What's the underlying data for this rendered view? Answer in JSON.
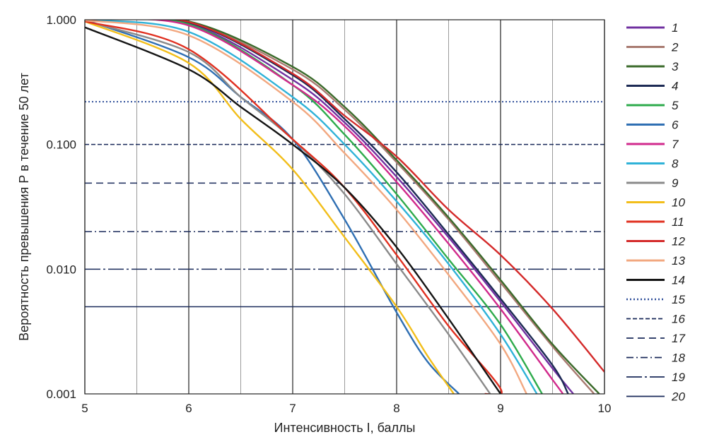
{
  "chart_data": {
    "type": "line",
    "xlabel": "Интенсивность I, баллы",
    "ylabel": "Вероятность превышения Р в течение 50 лет",
    "xlim": [
      5,
      10
    ],
    "ylim": [
      0.001,
      1.0
    ],
    "yscale": "log",
    "x_ticks": [
      "5",
      "6",
      "7",
      "8",
      "9",
      "10"
    ],
    "y_ticks": [
      "0.001",
      "0.010",
      "0.100",
      "1.000"
    ],
    "grid": true,
    "legend_position": "right",
    "series": [
      {
        "name": "1",
        "color": "#7030a0",
        "style": "solid",
        "x": [
          5,
          6,
          7,
          7.5,
          8,
          8.5,
          9,
          9.5,
          9.7
        ],
        "y": [
          1.0,
          0.93,
          0.33,
          0.15,
          0.055,
          0.018,
          0.0055,
          0.0016,
          0.001
        ]
      },
      {
        "name": "2",
        "color": "#a87a70",
        "style": "solid",
        "x": [
          5,
          6,
          7,
          7.5,
          8,
          8.5,
          9,
          9.5,
          9.9
        ],
        "y": [
          1.0,
          0.95,
          0.4,
          0.19,
          0.072,
          0.025,
          0.0078,
          0.0024,
          0.001
        ]
      },
      {
        "name": "3",
        "color": "#3a6a2a",
        "style": "solid",
        "x": [
          5,
          6,
          7,
          7.5,
          8,
          8.5,
          9,
          9.5,
          9.95
        ],
        "y": [
          1.0,
          0.97,
          0.42,
          0.2,
          0.075,
          0.026,
          0.0082,
          0.0025,
          0.001
        ]
      },
      {
        "name": "4",
        "color": "#1c2a54",
        "style": "solid",
        "x": [
          5,
          6,
          7,
          7.5,
          8,
          8.5,
          9,
          9.5,
          9.65
        ],
        "y": [
          1.0,
          0.95,
          0.36,
          0.16,
          0.06,
          0.019,
          0.0058,
          0.0017,
          0.001
        ]
      },
      {
        "name": "5",
        "color": "#2eab4c",
        "style": "solid",
        "x": [
          5,
          6,
          7,
          7.5,
          8,
          8.5,
          9,
          9.4
        ],
        "y": [
          1.0,
          0.92,
          0.3,
          0.12,
          0.04,
          0.012,
          0.0036,
          0.001
        ]
      },
      {
        "name": "6",
        "color": "#2f6fb3",
        "style": "solid",
        "x": [
          5,
          6,
          6.5,
          7,
          7.5,
          8,
          8.3,
          8.6
        ],
        "y": [
          1.0,
          0.5,
          0.24,
          0.11,
          0.025,
          0.0045,
          0.0018,
          0.001
        ]
      },
      {
        "name": "7",
        "color": "#d12a8c",
        "style": "solid",
        "x": [
          5,
          6,
          7,
          7.5,
          8,
          8.5,
          9,
          9.5,
          9.6
        ],
        "y": [
          1.0,
          0.9,
          0.3,
          0.14,
          0.05,
          0.016,
          0.0048,
          0.0013,
          0.001
        ]
      },
      {
        "name": "8",
        "color": "#2fb2d8",
        "style": "solid",
        "x": [
          5,
          6,
          7,
          7.5,
          8,
          8.5,
          9,
          9.35
        ],
        "y": [
          1.0,
          0.8,
          0.24,
          0.1,
          0.035,
          0.011,
          0.003,
          0.001
        ]
      },
      {
        "name": "9",
        "color": "#8a8a8a",
        "style": "solid",
        "x": [
          5,
          6,
          6.5,
          7,
          7.5,
          8,
          8.5,
          8.9
        ],
        "y": [
          0.98,
          0.55,
          0.24,
          0.11,
          0.04,
          0.011,
          0.003,
          0.001
        ]
      },
      {
        "name": "10",
        "color": "#f2be1a",
        "style": "solid",
        "x": [
          5,
          6,
          6.5,
          7,
          7.5,
          8,
          8.3,
          8.55
        ],
        "y": [
          0.97,
          0.45,
          0.16,
          0.063,
          0.018,
          0.005,
          0.002,
          0.001
        ]
      },
      {
        "name": "11",
        "color": "#e03020",
        "style": "solid",
        "x": [
          5,
          6,
          7,
          7.5,
          8,
          8.5,
          9,
          8.85
        ],
        "y": [
          0.97,
          0.58,
          0.11,
          0.045,
          0.013,
          0.0035,
          0.0011,
          0.001
        ]
      },
      {
        "name": "12",
        "color": "#d42a2a",
        "style": "solid",
        "x": [
          5,
          6,
          7,
          7.5,
          8,
          8.5,
          9,
          9.5,
          10
        ],
        "y": [
          1.0,
          0.96,
          0.37,
          0.17,
          0.08,
          0.03,
          0.013,
          0.0048,
          0.0015
        ]
      },
      {
        "name": "13",
        "color": "#f2a880",
        "style": "solid",
        "x": [
          5,
          6,
          7,
          7.5,
          8,
          8.5,
          9,
          9.25
        ],
        "y": [
          0.99,
          0.75,
          0.22,
          0.085,
          0.03,
          0.009,
          0.0025,
          0.001
        ]
      },
      {
        "name": "14",
        "color": "#141414",
        "style": "solid",
        "x": [
          5,
          6,
          6.5,
          7,
          7.5,
          8,
          8.5,
          9
        ],
        "y": [
          0.87,
          0.4,
          0.2,
          0.1,
          0.045,
          0.015,
          0.004,
          0.001
        ]
      }
    ],
    "reference_lines": [
      {
        "name": "15",
        "y": 0.22,
        "color": "#2f4f9a",
        "style": "dotted"
      },
      {
        "name": "16",
        "y": 0.1,
        "color": "#1a2a5a",
        "style": "dash-short"
      },
      {
        "name": "17",
        "y": 0.049,
        "color": "#1a2a5a",
        "style": "dashed"
      },
      {
        "name": "18",
        "y": 0.02,
        "color": "#1a2a5a",
        "style": "dash-dot"
      },
      {
        "name": "19",
        "y": 0.01,
        "color": "#1a2a5a",
        "style": "long-dash-dot"
      },
      {
        "name": "20",
        "y": 0.005,
        "color": "#1a2a5a",
        "style": "solid"
      }
    ]
  }
}
